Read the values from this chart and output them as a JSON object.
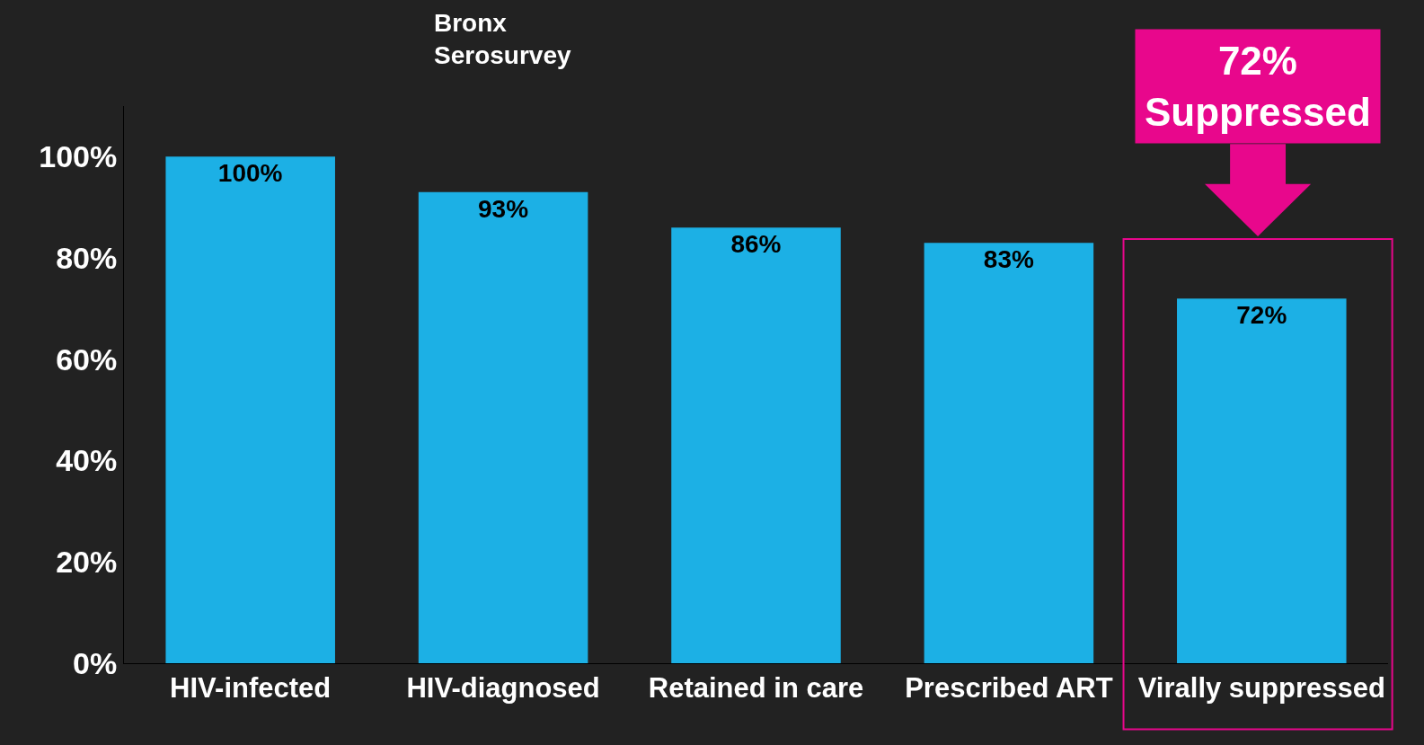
{
  "chart_data": {
    "type": "bar",
    "title": "Bronx\nSerosurvey",
    "categories": [
      "HIV-infected",
      "HIV-diagnosed",
      "Retained in care",
      "Prescribed ART",
      "Virally suppressed"
    ],
    "values": [
      100,
      93,
      86,
      83,
      72
    ],
    "value_labels": [
      "100%",
      "93%",
      "86%",
      "83%",
      "72%"
    ],
    "color": "#1cb0e5",
    "ylim": [
      0,
      110
    ],
    "yticks": [
      {
        "value": 0,
        "label": "0%"
      },
      {
        "value": 20,
        "label": "20%"
      },
      {
        "value": 40,
        "label": "40%"
      },
      {
        "value": 60,
        "label": "60%"
      },
      {
        "value": 80,
        "label": "80%"
      },
      {
        "value": 100,
        "label": "100%"
      }
    ],
    "grid": false,
    "annotations": [
      "72%\nSuppressed"
    ]
  }
}
